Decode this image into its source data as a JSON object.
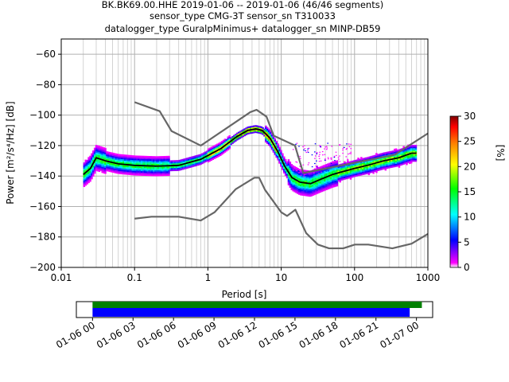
{
  "header": {
    "line1": "BK.BK69.00.HHE   2019-01-06 -- 2019-01-06  (46/46 segments)",
    "line2": "sensor_type CMG-3T sensor_sn T310033",
    "line3": "datalogger_type GuralpMinimus+ datalogger_sn MINP-DB59"
  },
  "chart_data": [
    {
      "type": "heatmap",
      "xlabel": "Period [s]",
      "ylabel": "Power [m²/s⁴/Hz] [dB]",
      "xscale": "log",
      "xlim": [
        0.01,
        1000
      ],
      "ylim": [
        -200,
        -50
      ],
      "grid": true,
      "x_ticks": [
        0.01,
        0.1,
        1,
        10,
        100,
        1000
      ],
      "x_tick_labels": [
        "0.01",
        "0.1",
        "1",
        "10",
        "100",
        "1000"
      ],
      "y_ticks": [
        -200,
        -180,
        -160,
        -140,
        -120,
        -100,
        -80,
        -60
      ],
      "y_tick_labels": [
        "−200",
        "−180",
        "−160",
        "−140",
        "−120",
        "−100",
        "−80",
        "−60"
      ],
      "colorbar": {
        "label": "[%]",
        "range": [
          0,
          30
        ],
        "ticks": [
          "0",
          "5",
          "10",
          "15",
          "20",
          "25",
          "30"
        ],
        "colors": [
          "#ffffff",
          "#ff00ff",
          "#0000ff",
          "#00ffff",
          "#00ff00",
          "#ffff00",
          "#ff8000",
          "#ff0000",
          "#800000"
        ]
      },
      "series": [
        {
          "role": "high noise model",
          "color": "#666666",
          "x": [
            0.1,
            0.22,
            0.32,
            0.8,
            3.8,
            4.6,
            6.3,
            7.9,
            15.4,
            20,
            354.8,
            1000
          ],
          "y": [
            -91.5,
            -97.4,
            -110.5,
            -120,
            -98,
            -96.5,
            -101,
            -113.5,
            -120,
            -138,
            -126,
            -112
          ]
        },
        {
          "role": "low noise model",
          "color": "#666666",
          "x": [
            0.1,
            0.17,
            0.4,
            0.8,
            1.24,
            2.4,
            4.3,
            5,
            6,
            10,
            12,
            15.6,
            21.9,
            31.6,
            45,
            70,
            101,
            154,
            328,
            600,
            1000
          ],
          "y": [
            -168,
            -166.7,
            -166.7,
            -169.2,
            -163.7,
            -148.6,
            -141.1,
            -141.1,
            -149,
            -163.8,
            -166.2,
            -162.1,
            -177.5,
            -185,
            -187.5,
            -187.5,
            -185,
            -185,
            -187.5,
            -184.4,
            -178
          ]
        },
        {
          "role": "mode",
          "color": "#000000",
          "x": [
            0.02,
            0.025,
            0.03,
            0.04,
            0.06,
            0.1,
            0.2,
            0.4,
            0.8,
            1.5,
            2.5,
            3.5,
            4.5,
            5.5,
            7,
            9,
            11,
            14,
            18,
            25,
            35,
            50,
            70,
            100,
            150,
            250,
            400,
            600,
            700
          ],
          "y": [
            -139,
            -135,
            -128,
            -130,
            -132,
            -133,
            -133.5,
            -133,
            -129,
            -122,
            -114,
            -110,
            -109,
            -110,
            -115,
            -124,
            -133,
            -141,
            -144,
            -145,
            -142,
            -139,
            -137,
            -135,
            -133,
            -130,
            -128,
            -125,
            -125
          ]
        }
      ]
    },
    {
      "type": "timeline",
      "x_tick_labels": [
        "01-06 00",
        "01-06 03",
        "01-06 06",
        "01-06 09",
        "01-06 12",
        "01-06 15",
        "01-06 18",
        "01-06 21",
        "01-07 00"
      ],
      "x_ticks_hours": [
        0,
        3,
        6,
        9,
        12,
        15,
        18,
        21,
        24
      ],
      "xlim_hours": [
        -1.2,
        25.2
      ],
      "bars": [
        {
          "color": "#008000",
          "start_hours": 0,
          "end_hours": 24.4
        },
        {
          "color": "#0000ff",
          "start_hours": 0,
          "end_hours": 23.5
        }
      ]
    }
  ]
}
